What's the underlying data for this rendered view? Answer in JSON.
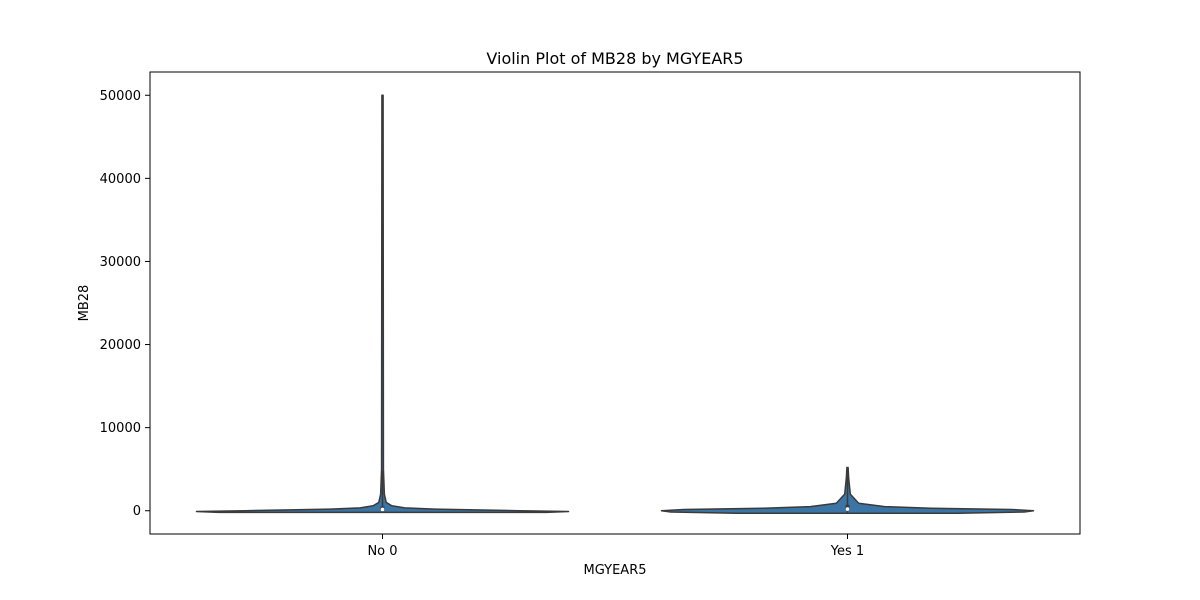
{
  "chart_data": {
    "type": "violin",
    "title": "Violin Plot of MB28 by MGYEAR5",
    "xlabel": "MGYEAR5",
    "ylabel": "MB28",
    "ylim": [
      -2800,
      52800
    ],
    "yticks": [
      0,
      10000,
      20000,
      30000,
      40000,
      50000
    ],
    "yticklabels": [
      "0",
      "10000",
      "20000",
      "30000",
      "40000",
      "50000"
    ],
    "categories": [
      "No 0",
      "Yes 1"
    ],
    "fill_color": "#3a75a5",
    "edge_color": "#3a3a3a",
    "grid": false,
    "series": [
      {
        "category": "No 0",
        "min": -200,
        "max": 50000,
        "q1": 50,
        "median": 150,
        "q3": 500,
        "whisker_low": -200,
        "whisker_high": 4800,
        "density": [
          [
            -200,
            0.88
          ],
          [
            -100,
            1.0
          ],
          [
            0,
            0.74
          ],
          [
            100,
            0.5
          ],
          [
            200,
            0.28
          ],
          [
            350,
            0.12
          ],
          [
            600,
            0.05
          ],
          [
            1000,
            0.02
          ],
          [
            2000,
            0.01
          ],
          [
            5000,
            0.005
          ],
          [
            50000,
            0.002
          ]
        ]
      },
      {
        "category": "Yes 1",
        "min": -300,
        "max": 5200,
        "q1": 50,
        "median": 200,
        "q3": 700,
        "whisker_low": -300,
        "whisker_high": 5200,
        "density": [
          [
            -300,
            0.6
          ],
          [
            -150,
            0.95
          ],
          [
            0,
            1.0
          ],
          [
            150,
            0.88
          ],
          [
            300,
            0.45
          ],
          [
            500,
            0.2
          ],
          [
            900,
            0.06
          ],
          [
            2000,
            0.015
          ],
          [
            4000,
            0.006
          ],
          [
            5200,
            0.003
          ]
        ]
      }
    ]
  }
}
